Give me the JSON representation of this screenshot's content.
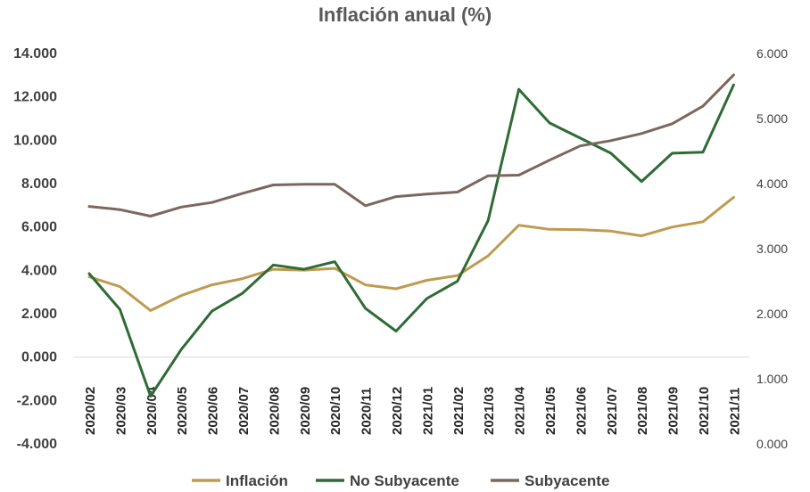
{
  "chart_data": {
    "type": "line",
    "title": "Inflación anual (%)",
    "xlabel": "",
    "ylabel": "",
    "categories": [
      "2020/02",
      "2020/03",
      "2020/04",
      "2020/05",
      "2020/06",
      "2020/07",
      "2020/08",
      "2020/09",
      "2020/10",
      "2020/11",
      "2020/12",
      "2021/01",
      "2021/02",
      "2021/03",
      "2021/04",
      "2021/05",
      "2021/06",
      "2021/07",
      "2021/08",
      "2021/09",
      "2021/10",
      "2021/11"
    ],
    "ylim": [
      -4,
      14
    ],
    "yticks": [
      "14.000",
      "12.000",
      "10.000",
      "8.000",
      "6.000",
      "4.000",
      "2.000",
      "0.000",
      "-2.000",
      "-4.000"
    ],
    "y2lim": [
      0,
      6
    ],
    "y2ticks": [
      "6.000",
      "5.000",
      "4.000",
      "3.000",
      "2.000",
      "1.000",
      "0.000"
    ],
    "grid": false,
    "legend_position": "bottom",
    "series": [
      {
        "name": "Inflación",
        "axis": "left",
        "color": "#BF9B50",
        "values": [
          3.7,
          3.25,
          2.15,
          2.84,
          3.33,
          3.62,
          4.05,
          4.01,
          4.09,
          3.33,
          3.15,
          3.54,
          3.76,
          4.67,
          6.08,
          5.89,
          5.88,
          5.81,
          5.59,
          6.0,
          6.24,
          7.37
        ]
      },
      {
        "name": "No Subyacente",
        "axis": "left",
        "color": "#2E6B35",
        "values": [
          3.85,
          2.2,
          -1.8,
          0.35,
          2.12,
          2.95,
          4.25,
          4.05,
          4.4,
          2.25,
          1.2,
          2.7,
          3.5,
          6.3,
          12.35,
          10.8,
          10.1,
          9.4,
          8.1,
          9.4,
          9.45,
          12.55
        ]
      },
      {
        "name": "Subyacente",
        "axis": "right",
        "color": "#7B675E",
        "values": [
          3.65,
          3.6,
          3.5,
          3.64,
          3.71,
          3.85,
          3.98,
          3.99,
          3.99,
          3.66,
          3.8,
          3.84,
          3.87,
          4.12,
          4.13,
          4.36,
          4.58,
          4.66,
          4.77,
          4.92,
          5.19,
          5.67
        ]
      }
    ]
  }
}
